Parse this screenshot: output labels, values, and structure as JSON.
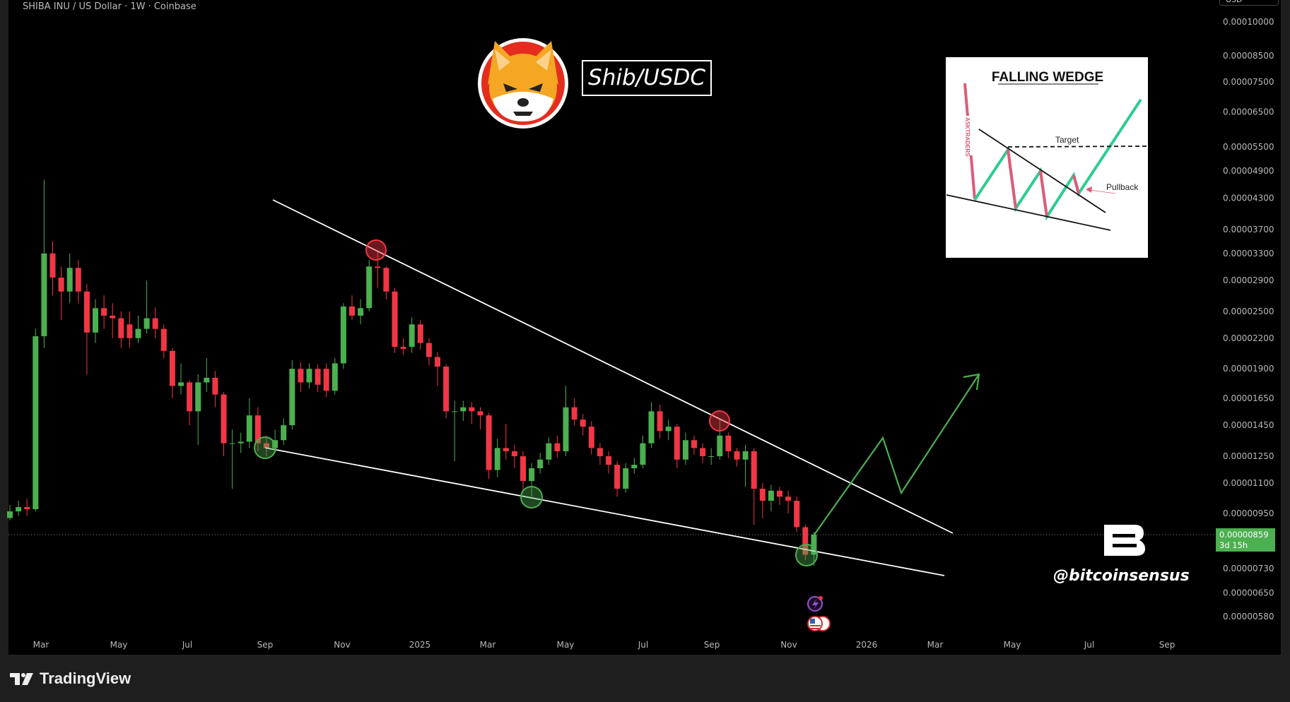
{
  "header": {
    "symbol_line": "SHIBA INU / US Dollar · 1W · Coinbase",
    "currency": "USD"
  },
  "overlay": {
    "pair_label": "Shib/USDC",
    "watermark": "@bitcoinsensus",
    "brand_logo_letter": "B"
  },
  "inset": {
    "title": "FALLING WEDGE",
    "target_label": "Target",
    "pullback_label": "Pullback",
    "credit": "ASKTRADERS"
  },
  "footer": {
    "brand": "TradingView"
  },
  "colors": {
    "up": "#4caf50",
    "down": "#f23645",
    "background": "#000000",
    "trendline": "#ffffff",
    "projection": "#4caf50"
  },
  "icons": [
    "shiba-inu-logo-icon",
    "lightning-event-icon",
    "us-flag-event-icon",
    "tradingview-logo-icon"
  ],
  "chart_data": {
    "type": "candlestick",
    "interval": "1W",
    "y_scale": "log",
    "grid": false,
    "ylim": [
      5.5e-06,
      0.000102
    ],
    "y_ticks": [
      "0.00010000",
      "0.00008500",
      "0.00007500",
      "0.00006500",
      "0.00005500",
      "0.00004900",
      "0.00004300",
      "0.00003700",
      "0.00003300",
      "0.00002900",
      "0.00002500",
      "0.00002200",
      "0.00001900",
      "0.00001650",
      "0.00001450",
      "0.00001250",
      "0.00001100",
      "0.00000950",
      "0.00000730",
      "0.00000650",
      "0.00000580"
    ],
    "x_ticks": [
      "Mar",
      "May",
      "Jul",
      "Sep",
      "Nov",
      "2025",
      "Mar",
      "May",
      "Jul",
      "Sep",
      "Nov",
      "2026",
      "Mar",
      "May",
      "Jul",
      "Sep"
    ],
    "last_price": {
      "value": "0.00000859",
      "countdown": "3d 15h"
    },
    "candles_ohlc": [
      [
        9.3e-06,
        9.9e-06,
        9.2e-06,
        9.6e-06
      ],
      [
        9.6e-06,
        1.01e-05,
        9.4e-06,
        9.8e-06
      ],
      [
        9.8e-06,
        1.02e-05,
        9.4e-06,
        9.7e-06
      ],
      [
        9.7e-06,
        2.3e-05,
        9.6e-06,
        2.22e-05
      ],
      [
        2.22e-05,
        4.7e-05,
        2.1e-05,
        3.3e-05
      ],
      [
        3.3e-05,
        3.5e-05,
        2.7e-05,
        2.94e-05
      ],
      [
        2.94e-05,
        3.1e-05,
        2.4e-05,
        2.75e-05
      ],
      [
        2.75e-05,
        3.3e-05,
        2.6e-05,
        3.08e-05
      ],
      [
        3.08e-05,
        3.2e-05,
        2.6e-05,
        2.75e-05
      ],
      [
        2.75e-05,
        2.85e-05,
        1.85e-05,
        2.26e-05
      ],
      [
        2.26e-05,
        2.65e-05,
        2.15e-05,
        2.54e-05
      ],
      [
        2.54e-05,
        2.7e-05,
        2.3e-05,
        2.45e-05
      ],
      [
        2.45e-05,
        2.6e-05,
        2.2e-05,
        2.42e-05
      ],
      [
        2.42e-05,
        2.5e-05,
        2.1e-05,
        2.2e-05
      ],
      [
        2.35e-05,
        2.5e-05,
        2.1e-05,
        2.2e-05
      ],
      [
        2.2e-05,
        2.45e-05,
        2.15e-05,
        2.3e-05
      ],
      [
        2.3e-05,
        2.9e-05,
        2.25e-05,
        2.42e-05
      ],
      [
        2.42e-05,
        2.55e-05,
        2.2e-05,
        2.3e-05
      ],
      [
        2.3e-05,
        2.35e-05,
        2e-05,
        2.07e-05
      ],
      [
        2.07e-05,
        2.1e-05,
        1.65e-05,
        1.75e-05
      ],
      [
        1.75e-05,
        1.95e-05,
        1.68e-05,
        1.78e-05
      ],
      [
        1.78e-05,
        1.8e-05,
        1.45e-05,
        1.55e-05
      ],
      [
        1.55e-05,
        1.85e-05,
        1.32e-05,
        1.78e-05
      ],
      [
        1.78e-05,
        2e-05,
        1.7e-05,
        1.82e-05
      ],
      [
        1.82e-05,
        1.88e-05,
        1.58e-05,
        1.68e-05
      ],
      [
        1.68e-05,
        1.7e-05,
        1.25e-05,
        1.33e-05
      ],
      [
        1.33e-05,
        1.42e-05,
        1.07e-05,
        1.33e-05
      ],
      [
        1.33e-05,
        1.4e-05,
        1.27e-05,
        1.34e-05
      ],
      [
        1.34e-05,
        1.65e-05,
        1.3e-05,
        1.52e-05
      ],
      [
        1.52e-05,
        1.58e-05,
        1.28e-05,
        1.33e-05
      ],
      [
        1.33e-05,
        1.38e-05,
        1.25e-05,
        1.3e-05
      ],
      [
        1.3e-05,
        1.42e-05,
        1.27e-05,
        1.35e-05
      ],
      [
        1.35e-05,
        1.5e-05,
        1.32e-05,
        1.45e-05
      ],
      [
        1.45e-05,
        1.98e-05,
        1.42e-05,
        1.9e-05
      ],
      [
        1.9e-05,
        1.96e-05,
        1.7e-05,
        1.78e-05
      ],
      [
        1.78e-05,
        1.95e-05,
        1.73e-05,
        1.9e-05
      ],
      [
        1.9e-05,
        1.94e-05,
        1.7e-05,
        1.76e-05
      ],
      [
        1.9e-05,
        1.95e-05,
        1.66e-05,
        1.71e-05
      ],
      [
        1.71e-05,
        2e-05,
        1.68e-05,
        1.95e-05
      ],
      [
        1.95e-05,
        2.6e-05,
        1.9e-05,
        2.56e-05
      ],
      [
        2.56e-05,
        2.7e-05,
        2.4e-05,
        2.45e-05
      ],
      [
        2.45e-05,
        2.65e-05,
        2.35e-05,
        2.54e-05
      ],
      [
        2.54e-05,
        3.2e-05,
        2.5e-05,
        3.1e-05
      ],
      [
        3.1e-05,
        3.35e-05,
        2.8e-05,
        3.08e-05
      ],
      [
        3.08e-05,
        3.1e-05,
        2.65e-05,
        2.75e-05
      ],
      [
        2.75e-05,
        2.8e-05,
        2.05e-05,
        2.11e-05
      ],
      [
        2.11e-05,
        2.2e-05,
        2.03e-05,
        2.09e-05
      ],
      [
        2.11e-05,
        2.43e-05,
        2.05e-05,
        2.35e-05
      ],
      [
        2.35e-05,
        2.4e-05,
        2.08e-05,
        2.15e-05
      ],
      [
        2.15e-05,
        2.2e-05,
        1.93e-05,
        2.01e-05
      ],
      [
        2.01e-05,
        2.06e-05,
        1.75e-05,
        1.92e-05
      ],
      [
        1.92e-05,
        1.94e-05,
        1.5e-05,
        1.55e-05
      ],
      [
        1.55e-05,
        1.63e-05,
        1.22e-05,
        1.55e-05
      ],
      [
        1.55e-05,
        1.63e-05,
        1.48e-05,
        1.58e-05
      ],
      [
        1.58e-05,
        1.62e-05,
        1.46e-05,
        1.55e-05
      ],
      [
        1.55e-05,
        1.58e-05,
        1.42e-05,
        1.52e-05
      ],
      [
        1.52e-05,
        1.54e-05,
        1.12e-05,
        1.17e-05
      ],
      [
        1.17e-05,
        1.36e-05,
        1.13e-05,
        1.3e-05
      ],
      [
        1.3e-05,
        1.46e-05,
        1.23e-05,
        1.28e-05
      ],
      [
        1.28e-05,
        1.32e-05,
        1.18e-05,
        1.25e-05
      ],
      [
        1.25e-05,
        1.28e-05,
        1.06e-05,
        1.11e-05
      ],
      [
        1.11e-05,
        1.21e-05,
        1.03e-05,
        1.18e-05
      ],
      [
        1.18e-05,
        1.27e-05,
        1.15e-05,
        1.23e-05
      ],
      [
        1.23e-05,
        1.37e-05,
        1.2e-05,
        1.33e-05
      ],
      [
        1.33e-05,
        1.38e-05,
        1.24e-05,
        1.28e-05
      ],
      [
        1.28e-05,
        1.75e-05,
        1.25e-05,
        1.58e-05
      ],
      [
        1.58e-05,
        1.65e-05,
        1.45e-05,
        1.49e-05
      ],
      [
        1.49e-05,
        1.53e-05,
        1.38e-05,
        1.44e-05
      ],
      [
        1.44e-05,
        1.48e-05,
        1.26e-05,
        1.3e-05
      ],
      [
        1.3e-05,
        1.33e-05,
        1.2e-05,
        1.25e-05
      ],
      [
        1.25e-05,
        1.28e-05,
        1.15e-05,
        1.2e-05
      ],
      [
        1.2e-05,
        1.22e-05,
        1.03e-05,
        1.07e-05
      ],
      [
        1.07e-05,
        1.21e-05,
        1.05e-05,
        1.18e-05
      ],
      [
        1.18e-05,
        1.24e-05,
        1.15e-05,
        1.2e-05
      ],
      [
        1.2e-05,
        1.38e-05,
        1.18e-05,
        1.33e-05
      ],
      [
        1.33e-05,
        1.62e-05,
        1.3e-05,
        1.55e-05
      ],
      [
        1.55e-05,
        1.6e-05,
        1.36e-05,
        1.41e-05
      ],
      [
        1.41e-05,
        1.49e-05,
        1.35e-05,
        1.44e-05
      ],
      [
        1.44e-05,
        1.46e-05,
        1.18e-05,
        1.23e-05
      ],
      [
        1.23e-05,
        1.4e-05,
        1.2e-05,
        1.35e-05
      ],
      [
        1.35e-05,
        1.38e-05,
        1.26e-05,
        1.3e-05
      ],
      [
        1.3e-05,
        1.33e-05,
        1.21e-05,
        1.25e-05
      ],
      [
        1.25e-05,
        1.3e-05,
        1.2e-05,
        1.25e-05
      ],
      [
        1.25e-05,
        1.49e-05,
        1.23e-05,
        1.38e-05
      ],
      [
        1.38e-05,
        1.4e-05,
        1.24e-05,
        1.28e-05
      ],
      [
        1.28e-05,
        1.3e-05,
        1.19e-05,
        1.23e-05
      ],
      [
        1.23e-05,
        1.32e-05,
        1.08e-05,
        1.28e-05
      ],
      [
        1.28e-05,
        1.3e-05,
        9e-06,
        1.07e-05
      ],
      [
        1.07e-05,
        1.1e-05,
        9.3e-06,
        1.01e-05
      ],
      [
        1.01e-05,
        1.09e-05,
        9.6e-06,
        1.06e-05
      ],
      [
        1.06e-05,
        1.08e-05,
        9.9e-06,
        1.03e-05
      ],
      [
        1.03e-05,
        1.06e-05,
        9.5e-06,
        1.01e-05
      ],
      [
        1.01e-05,
        1.03e-05,
        8.7e-06,
        8.9e-06
      ],
      [
        8.9e-06,
        9e-06,
        7.6e-06,
        7.8e-06
      ],
      [
        7.8e-06,
        8.7e-06,
        7.4e-06,
        8.59e-06
      ]
    ]
  }
}
